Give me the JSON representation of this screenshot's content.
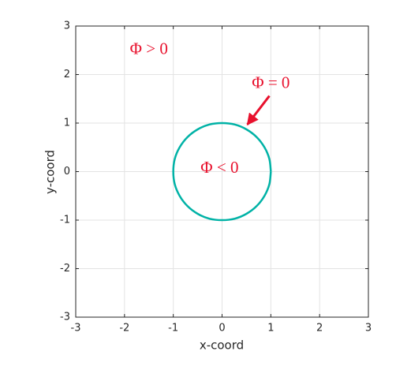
{
  "chart_data": {
    "type": "line",
    "xlabel": "x-coord",
    "ylabel": "y-coord",
    "xlim": [
      -3,
      3
    ],
    "ylim": [
      -3,
      3
    ],
    "xticks": [
      -3,
      -2,
      -1,
      0,
      1,
      2,
      3
    ],
    "yticks": [
      -3,
      -2,
      -1,
      0,
      1,
      2,
      3
    ],
    "grid": true,
    "series": [
      {
        "color": "#00b2a6",
        "x": [
          1,
          0.97,
          0.87,
          0.71,
          0.5,
          0.26,
          0,
          -0.26,
          -0.5,
          -0.71,
          -0.87,
          -0.97,
          -1,
          -0.97,
          -0.87,
          -0.71,
          -0.5,
          -0.26,
          0,
          0.26,
          0.5,
          0.71,
          0.87,
          0.97,
          1
        ],
        "values": [
          0,
          0.26,
          0.5,
          0.71,
          0.87,
          0.97,
          1,
          0.97,
          0.87,
          0.71,
          0.5,
          0.26,
          0,
          -0.26,
          -0.5,
          -0.71,
          -0.87,
          -0.97,
          -1,
          -0.97,
          -0.87,
          -0.71,
          -0.5,
          -0.26,
          0
        ]
      }
    ],
    "annotations": [
      "Φ > 0",
      "Φ = 0",
      "Φ < 0"
    ],
    "annotation_color": "#e8112d"
  }
}
